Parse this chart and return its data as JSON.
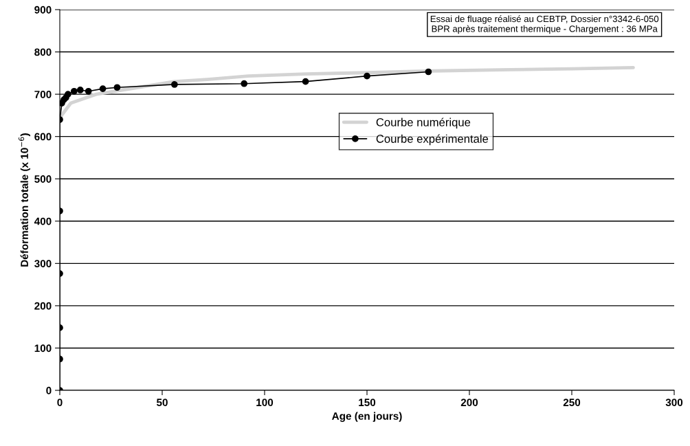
{
  "chart_data": {
    "type": "line",
    "xlabel": "Age (en jours)",
    "ylabel": "Déformation totale (x 10$^{−6}$)",
    "annotations": [
      "Essai de fluage réalisé au CEBTP, Dossier n°3342-6-050\nBPR après traitement thermique - Chargement : 36 MPa"
    ],
    "series": [
      {
        "name": "Courbe numérique",
        "color": "#d3d3d3",
        "marker": "none",
        "x": [
          0,
          1,
          5.4,
          17.8,
          35.6,
          56,
          72,
          92,
          120,
          150,
          182,
          220,
          250,
          280
        ],
        "values": [
          640,
          651,
          679,
          700,
          714,
          730,
          735,
          743,
          748,
          751,
          755,
          758,
          760,
          763
        ]
      },
      {
        "name": "Courbe expérimentale",
        "color": "#000000",
        "marker": "circle",
        "x": [
          0,
          0,
          0,
          0,
          0,
          0,
          1,
          2,
          3,
          4,
          7,
          10,
          14,
          21,
          28,
          56,
          90,
          120,
          150,
          180
        ],
        "values": [
          0,
          74,
          148,
          276,
          424,
          640,
          679,
          687,
          692,
          700,
          707,
          710,
          707,
          713,
          716,
          723,
          725,
          730,
          743,
          753
        ]
      }
    ],
    "xlim": [
      0,
      300
    ],
    "xticks": [
      0,
      50,
      100,
      150,
      200,
      250,
      300
    ],
    "ylim": [
      0,
      900
    ],
    "yticks": [
      0,
      100,
      200,
      300,
      400,
      500,
      600,
      700,
      800,
      900
    ],
    "grid": "y",
    "legend": "center",
    "line_style": "solid"
  }
}
